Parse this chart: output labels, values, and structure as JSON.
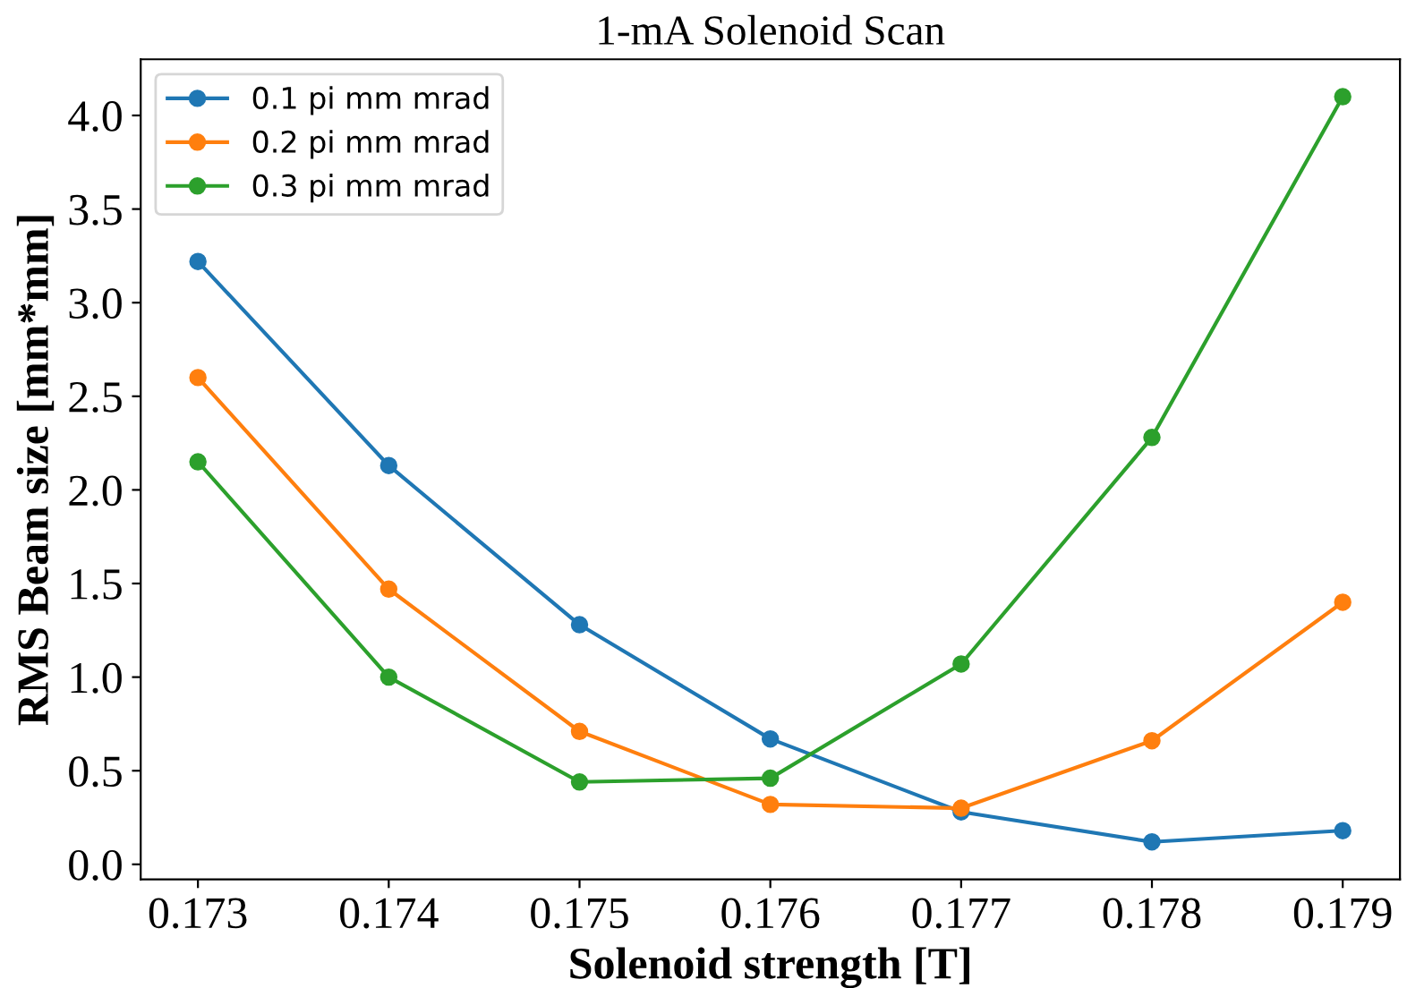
{
  "chart_data": {
    "type": "line",
    "title": "1-mA Solenoid Scan",
    "xlabel": "Solenoid strength [T]",
    "ylabel": "RMS Beam size [mm*mm]",
    "x": [
      0.173,
      0.174,
      0.175,
      0.176,
      0.177,
      0.178,
      0.179
    ],
    "series": [
      {
        "name": "0.1 pi mm mrad",
        "color": "#1f77b4",
        "values": [
          3.22,
          2.13,
          1.28,
          0.67,
          0.28,
          0.12,
          0.18
        ]
      },
      {
        "name": "0.2 pi mm mrad",
        "color": "#ff7f0e",
        "values": [
          2.6,
          1.47,
          0.71,
          0.32,
          0.3,
          0.66,
          1.4
        ]
      },
      {
        "name": "0.3 pi mm mrad",
        "color": "#2ca02c",
        "values": [
          2.15,
          1.0,
          0.44,
          0.46,
          1.07,
          2.28,
          4.1
        ]
      }
    ],
    "xlim": [
      0.1727,
      0.1793
    ],
    "ylim": [
      -0.08,
      4.3
    ],
    "xticks": [
      0.173,
      0.174,
      0.175,
      0.176,
      0.177,
      0.178,
      0.179
    ],
    "yticks": [
      {
        "value": 0,
        "label": "0.0"
      },
      0.5,
      {
        "value": 1,
        "label": "1.0"
      },
      1.5,
      {
        "value": 2,
        "label": "2.0"
      },
      2.5,
      {
        "value": 3,
        "label": "3.0"
      },
      3.5,
      {
        "value": 4,
        "label": "4.0"
      }
    ],
    "marker": "circle",
    "line_style": "solid",
    "legend": "top left",
    "grid": false
  }
}
